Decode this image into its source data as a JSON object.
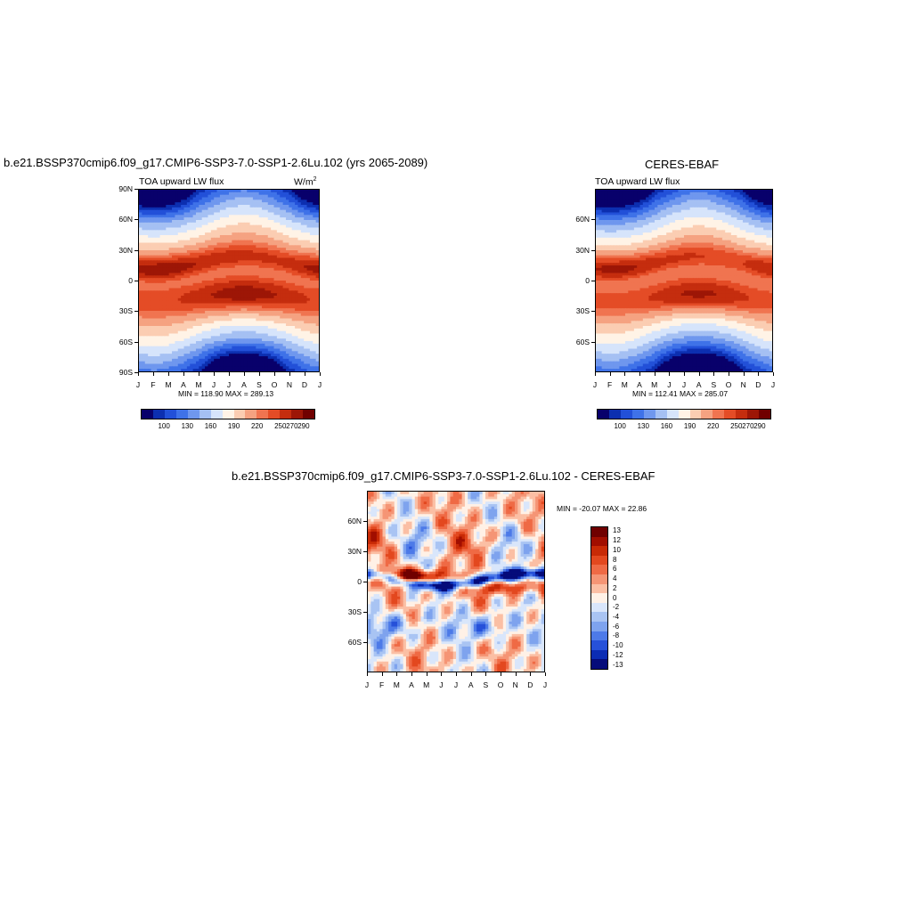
{
  "panels": [
    {
      "title": "b.e21.BSSP370cmip6.f09_g17.CMIP6-SSP3-7.0-SSP1-2.6Lu.102 (yrs 2065-2089)",
      "subtitle": "TOA upward LW flux",
      "units": "W/m",
      "units_sup": "2",
      "y_ticks": [
        "90N",
        "60N",
        "30N",
        "0",
        "30S",
        "60S",
        "90S"
      ],
      "x_ticks": [
        "J",
        "F",
        "M",
        "A",
        "M",
        "J",
        "J",
        "A",
        "S",
        "O",
        "N",
        "D",
        "J"
      ],
      "stats": "MIN = 118.90 MAX = 289.13",
      "colorbar_labels": [
        "100",
        "130",
        "160",
        "190",
        "220",
        "250",
        "270",
        "290"
      ]
    },
    {
      "title": "CERES-EBAF",
      "subtitle": "TOA upward LW flux",
      "y_ticks": [
        "60N",
        "30N",
        "0",
        "30S",
        "60S"
      ],
      "x_ticks": [
        "J",
        "F",
        "M",
        "A",
        "M",
        "J",
        "J",
        "A",
        "S",
        "O",
        "N",
        "D",
        "J"
      ],
      "stats": "MIN = 112.41 MAX = 285.07",
      "colorbar_labels": [
        "100",
        "130",
        "160",
        "190",
        "220",
        "250",
        "270",
        "290"
      ]
    },
    {
      "title": "b.e21.BSSP370cmip6.f09_g17.CMIP6-SSP3-7.0-SSP1-2.6Lu.102 - CERES-EBAF",
      "y_ticks": [
        "60N",
        "30N",
        "0",
        "30S",
        "60S"
      ],
      "x_ticks": [
        "J",
        "F",
        "M",
        "A",
        "M",
        "J",
        "J",
        "A",
        "S",
        "O",
        "N",
        "D",
        "J"
      ],
      "stats": "MIN = -20.07 MAX =  22.86",
      "colorbar_labels": [
        "13",
        "12",
        "10",
        "8",
        "6",
        "4",
        "2",
        "0",
        "-2",
        "-4",
        "-6",
        "-8",
        "-10",
        "-12",
        "-13"
      ]
    }
  ],
  "colors": {
    "abs_scale": [
      "#08006b",
      "#0c2fb0",
      "#2250d8",
      "#3f72e8",
      "#6f97ee",
      "#a5c0f3",
      "#d6e4fb",
      "#fff3e6",
      "#fbcdb2",
      "#f5a281",
      "#f07450",
      "#e44c26",
      "#c52d0e",
      "#9d1606",
      "#700000"
    ],
    "diff_scale": [
      "#700000",
      "#a10e00",
      "#c82a06",
      "#e3481f",
      "#ef6a45",
      "#f59575",
      "#fbbfa4",
      "#fff1e6",
      "#d9e6fb",
      "#a9c4f3",
      "#7ea3ee",
      "#4d7ae8",
      "#2651d9",
      "#0b2cb4",
      "#050b7a"
    ]
  },
  "chart_data": [
    {
      "type": "heatmap",
      "title": "b.e21.BSSP370cmip6.f09_g17.CMIP6-SSP3-7.0-SSP1-2.6Lu.102 (yrs 2065-2089)",
      "subtitle": "TOA upward LW flux",
      "units": "W/m2",
      "x": [
        "J",
        "F",
        "M",
        "A",
        "M",
        "J",
        "J",
        "A",
        "S",
        "O",
        "N",
        "D",
        "J"
      ],
      "y_range": [
        "90S",
        "90N"
      ],
      "levels": [
        100,
        115,
        130,
        145,
        160,
        175,
        190,
        205,
        220,
        235,
        250,
        260,
        270,
        280,
        290
      ],
      "min": 118.9,
      "max": 289.13
    },
    {
      "type": "heatmap",
      "title": "CERES-EBAF",
      "subtitle": "TOA upward LW flux",
      "x": [
        "J",
        "F",
        "M",
        "A",
        "M",
        "J",
        "J",
        "A",
        "S",
        "O",
        "N",
        "D",
        "J"
      ],
      "y_range": [
        "90S",
        "90N"
      ],
      "levels": [
        100,
        115,
        130,
        145,
        160,
        175,
        190,
        205,
        220,
        235,
        250,
        260,
        270,
        280,
        290
      ],
      "min": 112.41,
      "max": 285.07
    },
    {
      "type": "heatmap",
      "title": "b.e21.BSSP370cmip6.f09_g17.CMIP6-SSP3-7.0-SSP1-2.6Lu.102 - CERES-EBAF",
      "x": [
        "J",
        "F",
        "M",
        "A",
        "M",
        "J",
        "J",
        "A",
        "S",
        "O",
        "N",
        "D",
        "J"
      ],
      "y_range": [
        "90S",
        "90N"
      ],
      "levels": [
        -13,
        -12,
        -10,
        -8,
        -6,
        -4,
        -2,
        0,
        2,
        4,
        6,
        8,
        10,
        12,
        13
      ],
      "min": -20.07,
      "max": 22.86
    }
  ]
}
